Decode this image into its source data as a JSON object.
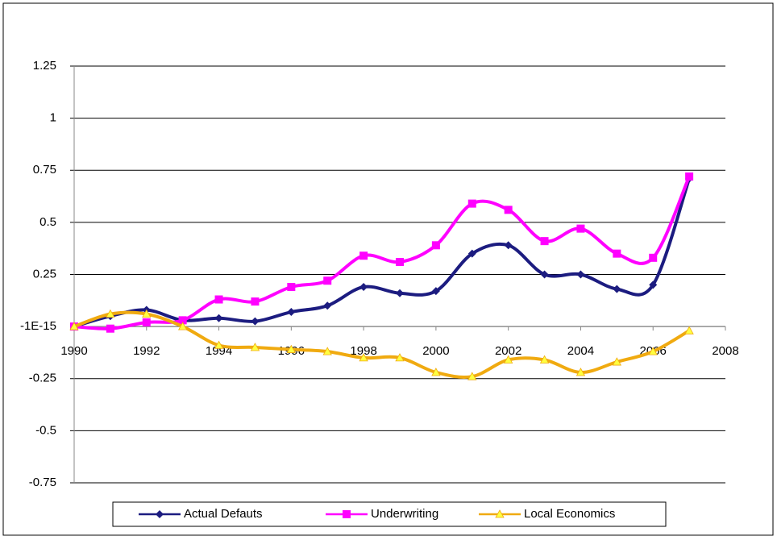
{
  "chart_data": {
    "type": "line",
    "x": [
      1990,
      1991,
      1992,
      1993,
      1994,
      1995,
      1996,
      1997,
      1998,
      1999,
      2000,
      2001,
      2002,
      2003,
      2004,
      2005,
      2006,
      2007
    ],
    "series": [
      {
        "name": "Actual Defauts",
        "color": "#1c1c80",
        "marker": "diamond",
        "values": [
          0,
          0.05,
          0.08,
          0.03,
          0.04,
          0.025,
          0.07,
          0.1,
          0.19,
          0.16,
          0.17,
          0.35,
          0.39,
          0.25,
          0.25,
          0.18,
          0.2,
          0.71
        ]
      },
      {
        "name": "Underwriting",
        "color": "#ff00ff",
        "marker": "square",
        "values": [
          0,
          -0.01,
          0.02,
          0.03,
          0.13,
          0.12,
          0.19,
          0.22,
          0.34,
          0.31,
          0.39,
          0.59,
          0.56,
          0.41,
          0.47,
          0.35,
          0.33,
          0.72
        ]
      },
      {
        "name": "Local Economics",
        "color": "#f0aa10",
        "marker": "triangle",
        "values": [
          0,
          0.06,
          0.06,
          0,
          -0.09,
          -0.1,
          -0.11,
          -0.12,
          -0.15,
          -0.15,
          -0.22,
          -0.24,
          -0.16,
          -0.16,
          -0.22,
          -0.17,
          -0.12,
          -0.02
        ]
      }
    ],
    "xlim": [
      1990,
      2008
    ],
    "xticks": [
      1990,
      1992,
      1994,
      1996,
      1998,
      2000,
      2002,
      2004,
      2006,
      2008
    ],
    "ylim": [
      -0.75,
      1.25
    ],
    "yticks": [
      -0.75,
      -0.5,
      -0.25,
      {
        "value": -1e-15,
        "label": "-1E-15"
      },
      0.25,
      0.5,
      0.75,
      1,
      1.25
    ],
    "grid": true,
    "smooth": true,
    "legend": "bottom"
  }
}
